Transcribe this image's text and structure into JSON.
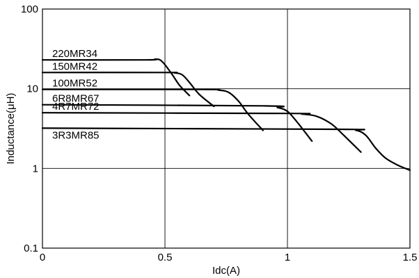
{
  "chart_data": {
    "type": "line",
    "title": "",
    "xlabel": "Idc(A)",
    "ylabel": "Inductance(μH)",
    "xlim": [
      0,
      1.5
    ],
    "ylim": [
      0.1,
      100
    ],
    "yscale": "log",
    "grid": true,
    "x_ticks": [
      0,
      0.5,
      1,
      1.5
    ],
    "x_tick_labels": [
      "0",
      "0.5",
      "1",
      "1.5"
    ],
    "y_ticks": [
      0.1,
      1,
      10,
      100
    ],
    "y_tick_labels": [
      "0.1",
      "1",
      "10",
      "100"
    ],
    "series": [
      {
        "name": "220MR34",
        "x": [
          0,
          0.42,
          0.46,
          0.48,
          0.5,
          0.53,
          0.56,
          0.6
        ],
        "y": [
          23,
          23,
          23.5,
          23,
          20,
          15,
          11,
          8.2
        ]
      },
      {
        "name": "150MR42",
        "x": [
          0,
          0.5,
          0.54,
          0.57,
          0.6,
          0.64,
          0.7
        ],
        "y": [
          16,
          16,
          15.8,
          15,
          12,
          8.5,
          6.0
        ]
      },
      {
        "name": "100MR52",
        "x": [
          0,
          0.65,
          0.72,
          0.76,
          0.8,
          0.84,
          0.9
        ],
        "y": [
          9.8,
          9.8,
          9.6,
          9.0,
          7.0,
          4.8,
          3.0
        ]
      },
      {
        "name": "6R8MR67",
        "x": [
          0,
          0.9,
          0.96,
          1.0,
          1.04,
          1.07,
          1.1
        ],
        "y": [
          6.3,
          6.1,
          5.8,
          5.2,
          3.8,
          2.9,
          2.2
        ]
      },
      {
        "name": "4R7MR72",
        "x": [
          0,
          1.0,
          1.06,
          1.12,
          1.18,
          1.23,
          1.3
        ],
        "y": [
          5.0,
          4.9,
          4.8,
          4.5,
          3.6,
          2.6,
          1.6
        ]
      },
      {
        "name": "3R3MR85",
        "x": [
          0,
          1.2,
          1.28,
          1.32,
          1.36,
          1.4,
          1.45,
          1.5
        ],
        "y": [
          3.2,
          3.1,
          3.0,
          2.6,
          1.8,
          1.35,
          1.1,
          0.95
        ]
      }
    ],
    "series_label_style": "stacked labels at top-left, each above its curve"
  }
}
